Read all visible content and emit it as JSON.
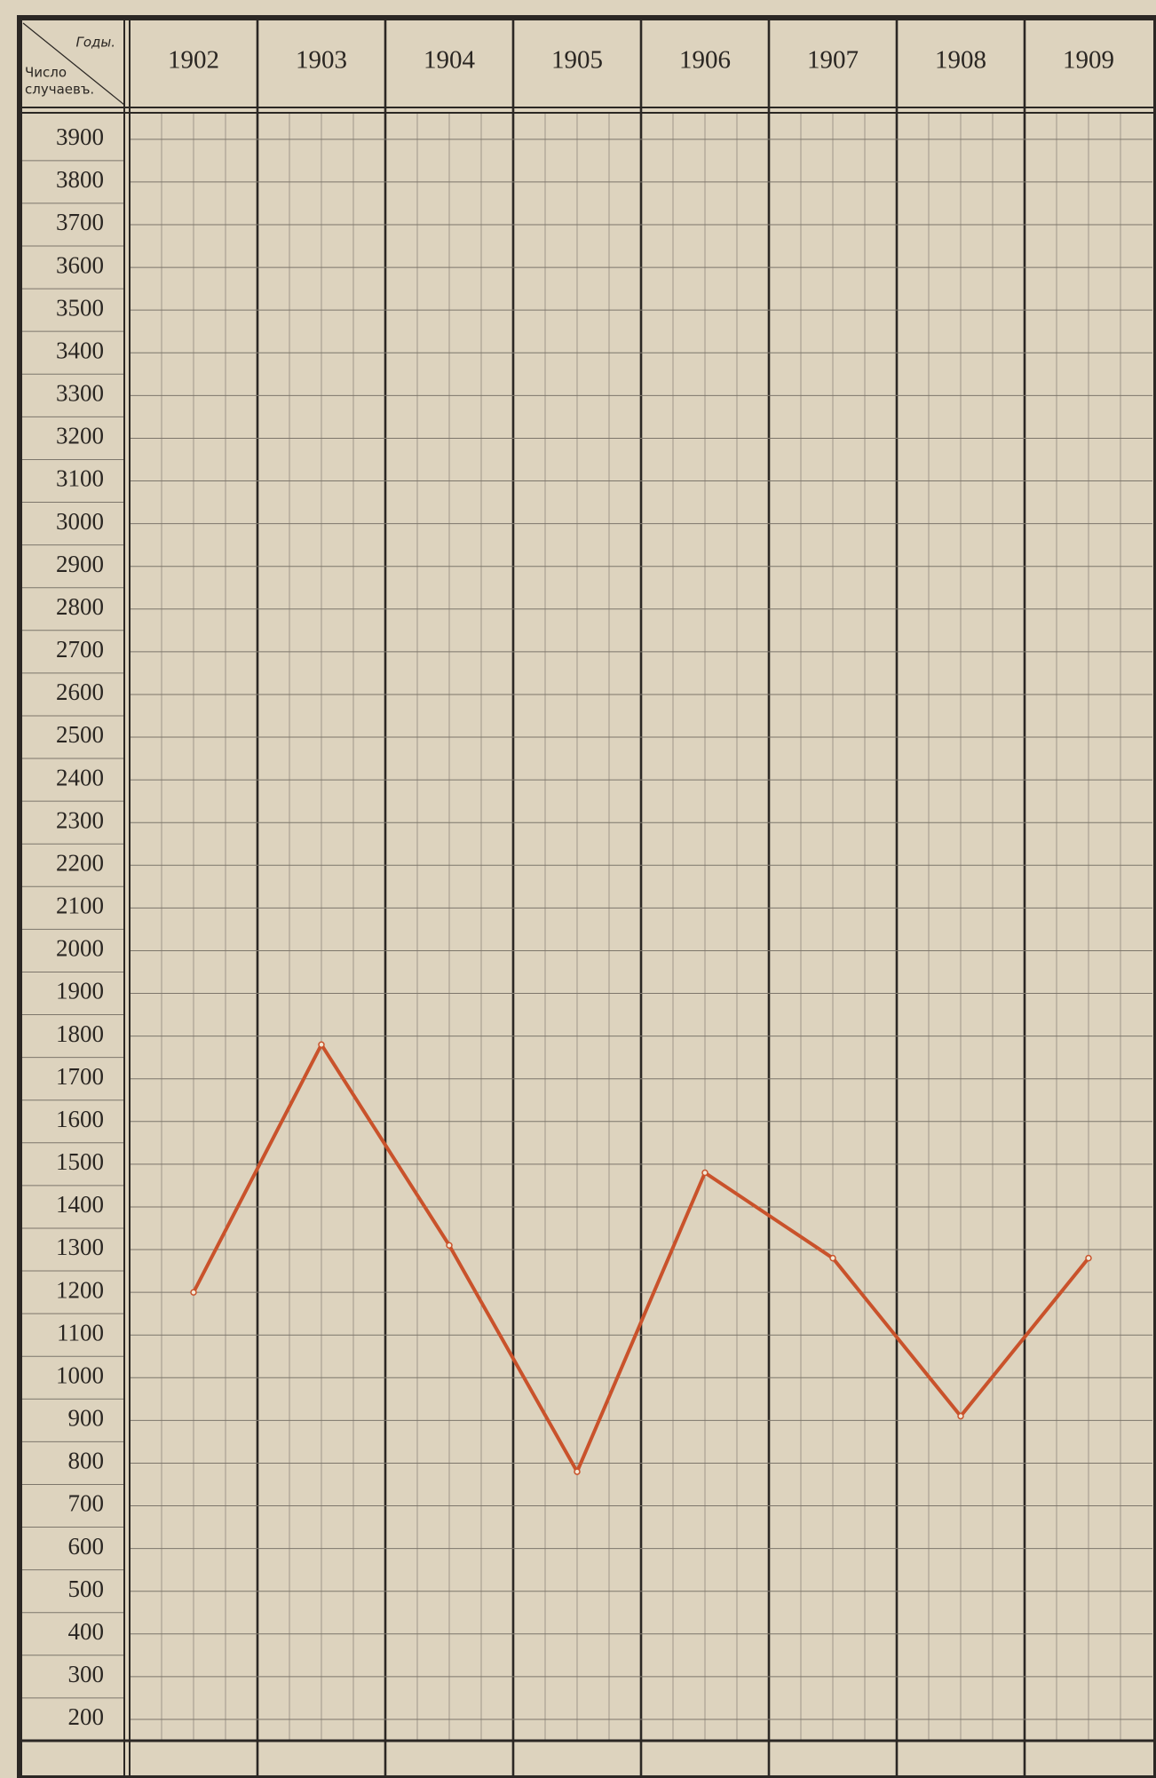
{
  "chart_data": {
    "type": "line",
    "x_header": "Годы.",
    "y_header": [
      "Число",
      "случаевъ."
    ],
    "categories": [
      "1902",
      "1903",
      "1904",
      "1905",
      "1906",
      "1907",
      "1908",
      "1909"
    ],
    "series": [
      {
        "name": null,
        "color": "#c9522b",
        "values": [
          1200,
          1780,
          1310,
          780,
          1480,
          1280,
          910,
          1280
        ]
      }
    ],
    "ylim": [
      150,
      3960
    ],
    "yticks": [
      200,
      300,
      400,
      500,
      600,
      700,
      800,
      900,
      1000,
      1100,
      1200,
      1300,
      1400,
      1500,
      1600,
      1700,
      1800,
      1900,
      2000,
      2100,
      2200,
      2300,
      2400,
      2500,
      2600,
      2700,
      2800,
      2900,
      3000,
      3100,
      3200,
      3300,
      3400,
      3500,
      3600,
      3700,
      3800,
      3900
    ],
    "grid": true
  }
}
